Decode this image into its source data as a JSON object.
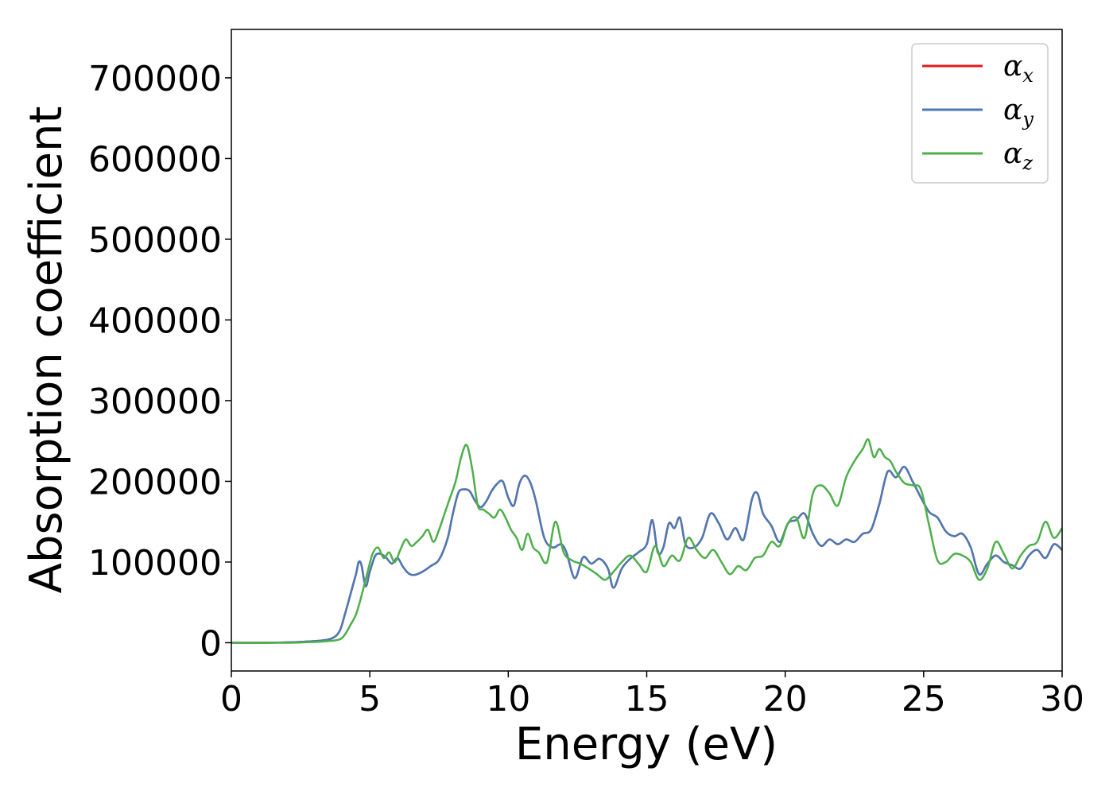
{
  "chart_data": {
    "type": "line",
    "title": "",
    "xlabel": "Energy (eV)",
    "ylabel": "Absorption coefficient",
    "xlim": [
      0,
      30
    ],
    "ylim": [
      -35000,
      760000
    ],
    "xticks": [
      0,
      5,
      10,
      15,
      20,
      25,
      30
    ],
    "xtick_labels": [
      "0",
      "5",
      "10",
      "15",
      "20",
      "25",
      "30"
    ],
    "yticks": [
      0,
      100000,
      200000,
      300000,
      400000,
      500000,
      600000,
      700000
    ],
    "ytick_labels": [
      "0",
      "100000",
      "200000",
      "300000",
      "400000",
      "500000",
      "600000",
      "700000"
    ],
    "grid": false,
    "legend_position": "top-right",
    "series": [
      {
        "name": "α",
        "subscript": "x",
        "color": "#e41a1c",
        "x": [
          0,
          1,
          2,
          3,
          3.6,
          3.9,
          4.1,
          4.3,
          4.5,
          4.6,
          4.7,
          4.85,
          5.0,
          5.2,
          5.4,
          5.6,
          5.8,
          6.0,
          6.2,
          6.4,
          6.6,
          6.9,
          7.2,
          7.5,
          7.8,
          8.0,
          8.2,
          8.4,
          8.6,
          8.8,
          9.0,
          9.2,
          9.4,
          9.6,
          9.8,
          10.0,
          10.2,
          10.4,
          10.6,
          10.8,
          11.0,
          11.3,
          11.6,
          11.9,
          12.1,
          12.4,
          12.7,
          13.0,
          13.3,
          13.6,
          13.8,
          14.1,
          14.4,
          14.7,
          15.0,
          15.2,
          15.4,
          15.6,
          15.8,
          16.0,
          16.2,
          16.4,
          16.7,
          17.0,
          17.3,
          17.6,
          17.9,
          18.2,
          18.5,
          18.8,
          19.0,
          19.2,
          19.5,
          19.8,
          20.1,
          20.4,
          20.7,
          21.0,
          21.3,
          21.6,
          21.9,
          22.2,
          22.5,
          22.8,
          23.1,
          23.4,
          23.7,
          24.0,
          24.3,
          24.6,
          24.9,
          25.2,
          25.5,
          25.8,
          26.1,
          26.4,
          26.7,
          27.0,
          27.3,
          27.6,
          27.9,
          28.2,
          28.5,
          28.8,
          29.1,
          29.4,
          29.7,
          30.0
        ],
        "y": [
          0,
          0,
          500,
          2000,
          5000,
          14000,
          35000,
          60000,
          85000,
          100000,
          96000,
          70000,
          88000,
          108000,
          110000,
          105000,
          98000,
          105000,
          94000,
          86000,
          84000,
          88000,
          95000,
          103000,
          128000,
          160000,
          186000,
          190000,
          188000,
          176000,
          168000,
          175000,
          188000,
          197000,
          200000,
          180000,
          170000,
          197000,
          207000,
          198000,
          175000,
          130000,
          118000,
          122000,
          112000,
          80000,
          106000,
          98000,
          104000,
          92000,
          68000,
          92000,
          104000,
          112000,
          122000,
          152000,
          112000,
          118000,
          148000,
          142000,
          155000,
          122000,
          118000,
          130000,
          160000,
          148000,
          128000,
          142000,
          128000,
          178000,
          185000,
          160000,
          145000,
          125000,
          148000,
          152000,
          160000,
          135000,
          120000,
          128000,
          122000,
          128000,
          125000,
          135000,
          140000,
          172000,
          212000,
          205000,
          218000,
          200000,
          180000,
          162000,
          155000,
          138000,
          132000,
          135000,
          118000,
          85000,
          98000,
          108000,
          100000,
          96000,
          92000,
          108000,
          115000,
          105000,
          122000,
          115000
        ]
      },
      {
        "name": "α",
        "subscript": "y",
        "color": "#4a7ab5",
        "x": [
          0,
          1,
          2,
          3,
          3.6,
          3.9,
          4.1,
          4.3,
          4.5,
          4.6,
          4.7,
          4.85,
          5.0,
          5.2,
          5.4,
          5.6,
          5.8,
          6.0,
          6.2,
          6.4,
          6.6,
          6.9,
          7.2,
          7.5,
          7.8,
          8.0,
          8.2,
          8.4,
          8.6,
          8.8,
          9.0,
          9.2,
          9.4,
          9.6,
          9.8,
          10.0,
          10.2,
          10.4,
          10.6,
          10.8,
          11.0,
          11.3,
          11.6,
          11.9,
          12.1,
          12.4,
          12.7,
          13.0,
          13.3,
          13.6,
          13.8,
          14.1,
          14.4,
          14.7,
          15.0,
          15.2,
          15.4,
          15.6,
          15.8,
          16.0,
          16.2,
          16.4,
          16.7,
          17.0,
          17.3,
          17.6,
          17.9,
          18.2,
          18.5,
          18.8,
          19.0,
          19.2,
          19.5,
          19.8,
          20.1,
          20.4,
          20.7,
          21.0,
          21.3,
          21.6,
          21.9,
          22.2,
          22.5,
          22.8,
          23.1,
          23.4,
          23.7,
          24.0,
          24.3,
          24.6,
          24.9,
          25.2,
          25.5,
          25.8,
          26.1,
          26.4,
          26.7,
          27.0,
          27.3,
          27.6,
          27.9,
          28.2,
          28.5,
          28.8,
          29.1,
          29.4,
          29.7,
          30.0
        ],
        "y": [
          0,
          0,
          500,
          2000,
          5000,
          14000,
          35000,
          60000,
          85000,
          100000,
          96000,
          70000,
          88000,
          108000,
          110000,
          105000,
          98000,
          105000,
          94000,
          86000,
          84000,
          88000,
          95000,
          103000,
          128000,
          160000,
          186000,
          190000,
          188000,
          176000,
          168000,
          175000,
          188000,
          197000,
          200000,
          180000,
          170000,
          197000,
          207000,
          198000,
          175000,
          130000,
          118000,
          122000,
          112000,
          80000,
          106000,
          98000,
          104000,
          92000,
          68000,
          92000,
          104000,
          112000,
          122000,
          152000,
          112000,
          118000,
          148000,
          142000,
          155000,
          122000,
          118000,
          130000,
          160000,
          148000,
          128000,
          142000,
          128000,
          178000,
          185000,
          160000,
          145000,
          125000,
          148000,
          152000,
          160000,
          135000,
          120000,
          128000,
          122000,
          128000,
          125000,
          135000,
          140000,
          172000,
          212000,
          205000,
          218000,
          200000,
          180000,
          162000,
          155000,
          138000,
          132000,
          135000,
          118000,
          85000,
          98000,
          108000,
          100000,
          96000,
          92000,
          108000,
          115000,
          105000,
          122000,
          115000
        ]
      },
      {
        "name": "α",
        "subscript": "z",
        "color": "#4daf4a",
        "x": [
          0,
          1,
          2,
          3,
          3.5,
          3.9,
          4.1,
          4.3,
          4.5,
          4.7,
          4.9,
          5.1,
          5.3,
          5.5,
          5.7,
          5.9,
          6.1,
          6.3,
          6.5,
          6.7,
          6.9,
          7.1,
          7.3,
          7.5,
          7.7,
          7.9,
          8.1,
          8.3,
          8.5,
          8.7,
          8.9,
          9.1,
          9.3,
          9.5,
          9.7,
          9.9,
          10.1,
          10.3,
          10.5,
          10.7,
          10.9,
          11.1,
          11.4,
          11.7,
          12.0,
          12.3,
          12.6,
          12.9,
          13.2,
          13.5,
          13.8,
          14.1,
          14.4,
          14.7,
          15.0,
          15.3,
          15.6,
          15.9,
          16.2,
          16.5,
          16.8,
          17.1,
          17.4,
          17.7,
          18.0,
          18.3,
          18.6,
          18.9,
          19.2,
          19.5,
          19.8,
          20.1,
          20.4,
          20.7,
          21.0,
          21.3,
          21.6,
          21.9,
          22.2,
          22.5,
          22.8,
          23.0,
          23.2,
          23.4,
          23.6,
          23.8,
          24.0,
          24.3,
          24.6,
          24.9,
          25.2,
          25.5,
          25.8,
          26.1,
          26.4,
          26.7,
          27.0,
          27.3,
          27.6,
          27.9,
          28.2,
          28.5,
          28.8,
          29.1,
          29.4,
          29.7,
          30.0
        ],
        "y": [
          0,
          0,
          0,
          1000,
          2000,
          4000,
          10000,
          22000,
          35000,
          58000,
          85000,
          110000,
          118000,
          105000,
          112000,
          100000,
          115000,
          128000,
          120000,
          125000,
          132000,
          140000,
          125000,
          140000,
          160000,
          180000,
          200000,
          230000,
          245000,
          215000,
          170000,
          165000,
          160000,
          155000,
          165000,
          155000,
          140000,
          130000,
          115000,
          135000,
          118000,
          112000,
          100000,
          150000,
          112000,
          102000,
          98000,
          92000,
          85000,
          78000,
          88000,
          100000,
          108000,
          98000,
          88000,
          120000,
          95000,
          108000,
          102000,
          130000,
          115000,
          105000,
          115000,
          100000,
          85000,
          95000,
          90000,
          105000,
          108000,
          125000,
          120000,
          148000,
          155000,
          130000,
          185000,
          195000,
          185000,
          170000,
          205000,
          225000,
          240000,
          252000,
          230000,
          240000,
          230000,
          225000,
          212000,
          198000,
          195000,
          190000,
          145000,
          102000,
          100000,
          110000,
          108000,
          100000,
          78000,
          92000,
          125000,
          110000,
          92000,
          108000,
          120000,
          125000,
          150000,
          130000,
          142000
        ]
      }
    ]
  }
}
